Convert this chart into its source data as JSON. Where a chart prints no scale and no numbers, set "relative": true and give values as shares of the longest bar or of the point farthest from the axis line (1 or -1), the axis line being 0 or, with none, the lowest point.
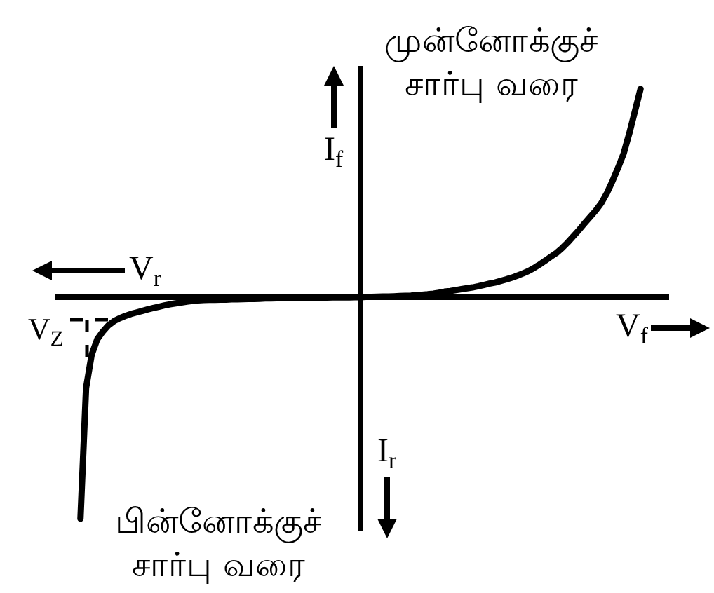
{
  "chart_data": {
    "type": "line",
    "relative": true,
    "xlabel": "V$_{f}$",
    "ylabel": "I$_{f}$",
    "marker": "none",
    "line_style": "solid",
    "annotations": [
      "V$_{r}$",
      "I$_{r}$",
      "V$_{Z}$",
      "முன்னோக்குச் சார்பு வரை",
      "பின்னோக்குச் சார்பு வரை"
    ],
    "categories": [
      null,
      null,
      null,
      null,
      null,
      null,
      null,
      null,
      null,
      null,
      null,
      null,
      null,
      null,
      null,
      null,
      null,
      null,
      null,
      null,
      null,
      null,
      null,
      null,
      null,
      null,
      null,
      null,
      null,
      null,
      null,
      null,
      null,
      null,
      null,
      null,
      null,
      null,
      null,
      null,
      null,
      null,
      null,
      null,
      null,
      null,
      null,
      null,
      null,
      null,
      null,
      null,
      null,
      null,
      null,
      null,
      null,
      null,
      null,
      null,
      null,
      null,
      null,
      null,
      null,
      null,
      null,
      null,
      null,
      null,
      null,
      null,
      null,
      null,
      null,
      null,
      null,
      null,
      null,
      null,
      null,
      null,
      null,
      null,
      null,
      null,
      null,
      null,
      null,
      null,
      null,
      null,
      null,
      null,
      null,
      null,
      null,
      null,
      null,
      null,
      null
    ],
    "series": [
      {
        "color": "#000000",
        "values": [
          -1.0,
          -0.41,
          -0.26,
          -0.19,
          -0.155,
          -0.127,
          -0.108,
          -0.095,
          -0.085,
          -0.076,
          -0.069,
          -0.062,
          -0.055,
          -0.049,
          -0.043,
          -0.037,
          -0.032,
          -0.028,
          -0.024,
          -0.02,
          -0.017,
          -0.014,
          -0.013,
          -0.012,
          -0.012,
          -0.011,
          -0.011,
          -0.01,
          -0.01,
          -0.009,
          -0.008,
          -0.008,
          -0.007,
          -0.006,
          -0.006,
          -0.005,
          -0.005,
          -0.004,
          -0.004,
          -0.003,
          -0.003,
          -0.003,
          -0.002,
          -0.002,
          -0.002,
          -0.001,
          -0.001,
          -0.001,
          -0.001,
          0,
          0,
          0.001,
          0.001,
          0.002,
          0.003,
          0.003,
          0.004,
          0.005,
          0.006,
          0.007,
          0.009,
          0.011,
          0.013,
          0.016,
          0.02,
          0.025,
          0.028,
          0.032,
          0.036,
          0.04,
          0.044,
          0.049,
          0.055,
          0.061,
          0.066,
          0.073,
          0.08,
          0.088,
          0.097,
          0.107,
          0.118,
          0.132,
          0.148,
          0.165,
          0.183,
          0.2,
          0.222,
          0.247,
          0.275,
          0.303,
          0.333,
          0.362,
          0.391,
          0.425,
          0.47,
          0.525,
          0.585,
          0.65,
          0.74,
          0.84,
          0.94
        ]
      }
    ]
  }
}
